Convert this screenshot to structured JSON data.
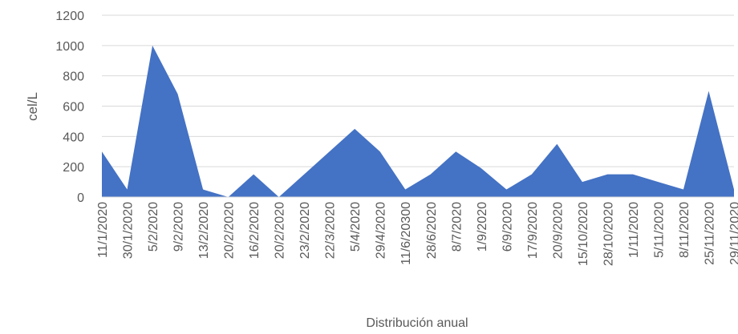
{
  "chart_data": {
    "type": "area",
    "x_label": "Distribución anual",
    "y_label": "cel/L",
    "categories": [
      "11/1/2020",
      "30/1/2020",
      "5/2/2020",
      "9/2/2020",
      "13/2/2020",
      "20/2/2020",
      "16/2/2020",
      "20/2/2020",
      "23/2/2020",
      "22/3/2020",
      "5/4/2020",
      "29/4/2020",
      "11/6/20300",
      "28/6/2020",
      "8/7/2020",
      "1/9/2020",
      "6/9/2020",
      "17/9/2020",
      "20/9/2020",
      "15/10/2020",
      "28/10/2020",
      "1/11/2020",
      "5/11/2020",
      "8/11/2020",
      "25/11/2020",
      "29/11/2020"
    ],
    "values": [
      300,
      50,
      1000,
      680,
      50,
      0,
      150,
      0,
      150,
      300,
      450,
      300,
      50,
      150,
      300,
      190,
      50,
      150,
      350,
      100,
      150,
      150,
      100,
      50,
      700,
      50
    ],
    "color": "#4472c4",
    "ylim": [
      0,
      1200
    ],
    "yticks": [
      0,
      200,
      400,
      600,
      800,
      1000,
      1200
    ],
    "grid": true
  }
}
